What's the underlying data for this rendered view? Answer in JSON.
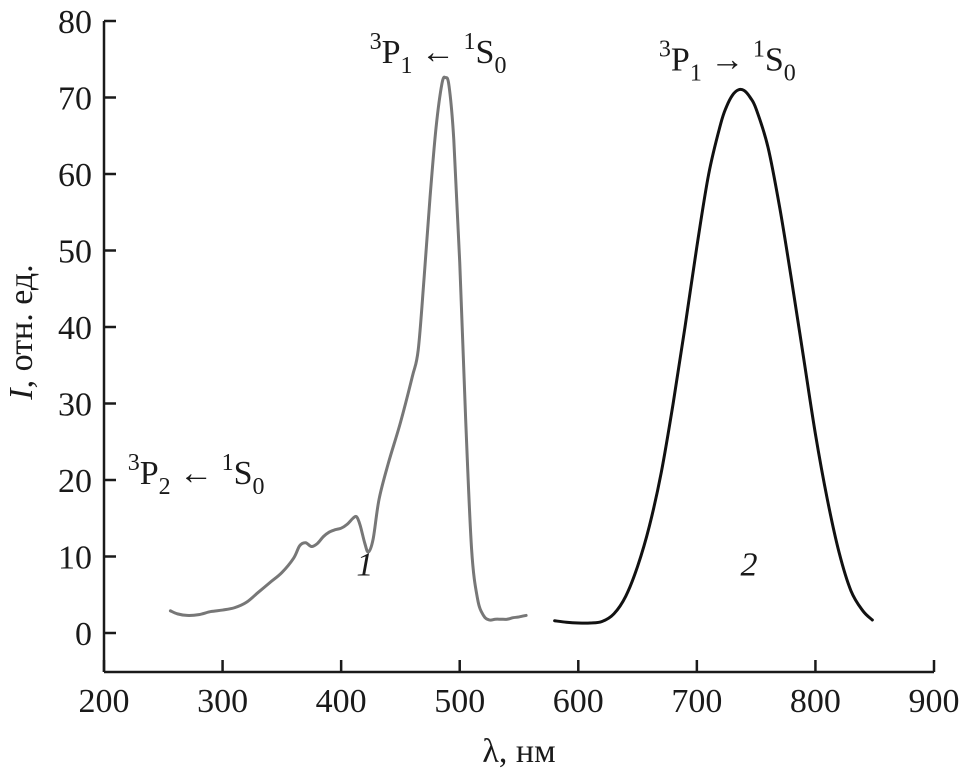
{
  "chart_data": {
    "type": "line",
    "title": "",
    "xlabel": "λ, нм",
    "ylabel_italic": "I",
    "ylabel_rest": ", отн. ед.",
    "xlim": [
      200,
      900
    ],
    "ylim": [
      0,
      80
    ],
    "x_ticks": [
      200,
      300,
      400,
      500,
      600,
      700,
      800,
      900
    ],
    "y_ticks": [
      0,
      10,
      20,
      30,
      40,
      50,
      60,
      70,
      80
    ],
    "grid": false,
    "series": [
      {
        "name": "1",
        "color": "#777777",
        "x": [
          256,
          262,
          270,
          280,
          290,
          300,
          310,
          320,
          330,
          340,
          350,
          360,
          365,
          370,
          375,
          380,
          385,
          390,
          395,
          400,
          405,
          410,
          413,
          416,
          420,
          423,
          427,
          432,
          440,
          450,
          460,
          465,
          470,
          475,
          480,
          485,
          488,
          491,
          495,
          500,
          505,
          510,
          515,
          520,
          525,
          530,
          535,
          540,
          545,
          550,
          556
        ],
        "y": [
          2.9,
          2.5,
          2.3,
          2.4,
          2.8,
          3.0,
          3.3,
          4.0,
          5.3,
          6.6,
          7.9,
          9.8,
          11.4,
          11.8,
          11.3,
          11.7,
          12.6,
          13.2,
          13.5,
          13.7,
          14.2,
          15.0,
          15.2,
          14.1,
          11.7,
          10.6,
          12.3,
          17.5,
          22.3,
          27.5,
          33.5,
          37.0,
          46.5,
          57.0,
          66.0,
          71.8,
          72.6,
          71.5,
          64.5,
          48.5,
          28.0,
          11.0,
          4.5,
          2.3,
          1.7,
          1.8,
          1.8,
          1.8,
          2.0,
          2.1,
          2.3
        ]
      },
      {
        "name": "2",
        "color": "#111111",
        "x": [
          580,
          590,
          600,
          610,
          620,
          630,
          640,
          650,
          660,
          670,
          680,
          690,
          700,
          710,
          720,
          725,
          730,
          735,
          740,
          745,
          750,
          760,
          770,
          780,
          790,
          800,
          810,
          820,
          830,
          840,
          848
        ],
        "y": [
          1.6,
          1.4,
          1.3,
          1.3,
          1.5,
          2.5,
          4.8,
          8.7,
          14.0,
          21.0,
          30.0,
          40.0,
          50.5,
          60.0,
          66.5,
          68.8,
          70.3,
          71.0,
          70.9,
          70.0,
          68.5,
          63.5,
          55.5,
          46.0,
          36.0,
          26.0,
          17.5,
          10.5,
          5.5,
          2.9,
          1.7
        ]
      }
    ],
    "annotations": [
      {
        "id": "p2",
        "left_pre": "3",
        "left_main": "P",
        "left_sub": "2",
        "arrow": "←",
        "right_pre": "1",
        "right_main": "S",
        "right_sub": "0",
        "at": [
          220,
          19.5
        ]
      },
      {
        "id": "p1a",
        "left_pre": "3",
        "left_main": "P",
        "left_sub": "1",
        "arrow": "←",
        "right_pre": "1",
        "right_main": "S",
        "right_sub": "0",
        "at": [
          424,
          74.5
        ]
      },
      {
        "id": "p1e",
        "left_pre": "3",
        "left_main": "P",
        "left_sub": "1",
        "arrow": "→",
        "right_pre": "1",
        "right_main": "S",
        "right_sub": "0",
        "at": [
          668,
          73.5
        ]
      }
    ],
    "curve_labels": [
      {
        "text": "1",
        "at": [
          420,
          7.5
        ]
      },
      {
        "text": "2",
        "at": [
          744,
          7.5
        ]
      }
    ]
  }
}
